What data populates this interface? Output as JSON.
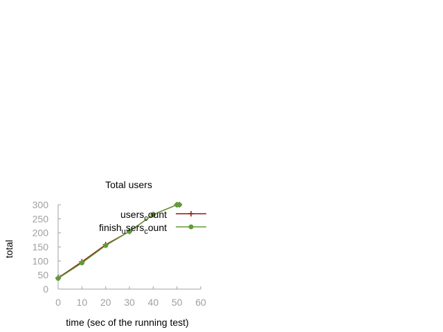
{
  "chart_data": {
    "type": "line",
    "title": "Total users",
    "xlabel": "time (sec of the running test)",
    "ylabel": "total",
    "xlim": [
      0,
      60
    ],
    "ylim": [
      0,
      300
    ],
    "xticks": [
      "0",
      "10",
      "20",
      "30",
      "40",
      "50",
      "60"
    ],
    "yticks": [
      "0",
      "50",
      "100",
      "150",
      "200",
      "250",
      "300"
    ],
    "grid": false,
    "legend_position": "top-right",
    "series": [
      {
        "legend": {
          "a": "users",
          "sub": "c",
          "b": "ount"
        },
        "color": "#8b1a0e",
        "marker": "plus",
        "x": [
          0,
          10,
          20,
          30,
          40,
          50,
          51
        ],
        "y": [
          40,
          97,
          158,
          205,
          265,
          300,
          300
        ]
      },
      {
        "legend": {
          "a": "finish",
          "sub1": "u",
          "b": "sers",
          "sub2": "c",
          "c": "ount"
        },
        "color": "#5e9c36",
        "marker": "filled-circle",
        "x": [
          0,
          10,
          20,
          30,
          40,
          50,
          51
        ],
        "y": [
          38,
          93,
          155,
          205,
          265,
          300,
          300
        ]
      }
    ]
  }
}
